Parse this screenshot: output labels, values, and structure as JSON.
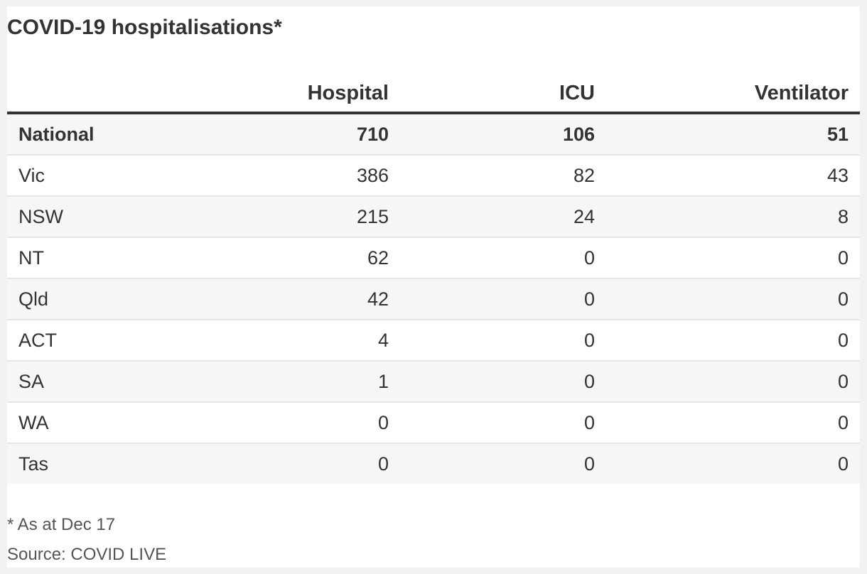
{
  "title": "COVID-19 hospitalisations*",
  "note": "* As at Dec 17",
  "source": "Source: COVID LIVE",
  "colors": {
    "text": "#333333",
    "rule": "#333333",
    "row_divider": "#e6e6e6",
    "shaded_row": "#f6f6f6"
  },
  "chart_data": {
    "type": "table",
    "title": "COVID-19 hospitalisations*",
    "columns": [
      "Hospital",
      "ICU",
      "Ventilator"
    ],
    "rows": [
      {
        "region": "National",
        "values": [
          "710",
          "106",
          "51"
        ]
      },
      {
        "region": "Vic",
        "values": [
          "386",
          "82",
          "43"
        ]
      },
      {
        "region": "NSW",
        "values": [
          "215",
          "24",
          "8"
        ]
      },
      {
        "region": "NT",
        "values": [
          "62",
          "0",
          "0"
        ]
      },
      {
        "region": "Qld",
        "values": [
          "42",
          "0",
          "0"
        ]
      },
      {
        "region": "ACT",
        "values": [
          "4",
          "0",
          "0"
        ]
      },
      {
        "region": "SA",
        "values": [
          "1",
          "0",
          "0"
        ]
      },
      {
        "region": "WA",
        "values": [
          "0",
          "0",
          "0"
        ]
      },
      {
        "region": "Tas",
        "values": [
          "0",
          "0",
          "0"
        ]
      }
    ],
    "note": "* As at Dec 17",
    "source": "Source: COVID LIVE"
  }
}
